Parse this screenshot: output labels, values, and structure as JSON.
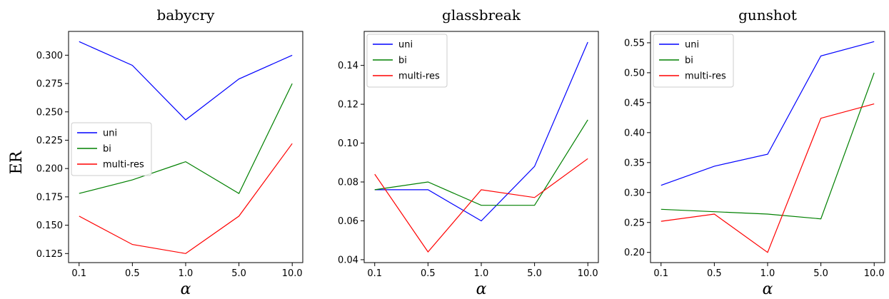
{
  "figure": {
    "ylabel": "ER"
  },
  "chart_data": [
    {
      "type": "line",
      "title": "babycry",
      "xlabel": "α",
      "ylabel": "ER",
      "categories": [
        "0.1",
        "0.5",
        "1.0",
        "5.0",
        "10.0"
      ],
      "ylim": [
        0.117,
        0.321
      ],
      "yticks": [
        "0.125",
        "0.150",
        "0.175",
        "0.200",
        "0.225",
        "0.250",
        "0.275",
        "0.300"
      ],
      "legend_position": "center-left",
      "series": [
        {
          "name": "uni",
          "color": "#0000ff",
          "values": [
            0.312,
            0.291,
            0.243,
            0.279,
            0.3
          ]
        },
        {
          "name": "bi",
          "color": "#008000",
          "values": [
            0.178,
            0.19,
            0.206,
            0.178,
            0.275
          ]
        },
        {
          "name": "multi-res",
          "color": "#ff0000",
          "values": [
            0.158,
            0.133,
            0.125,
            0.158,
            0.222
          ]
        }
      ]
    },
    {
      "type": "line",
      "title": "glassbreak",
      "xlabel": "α",
      "ylabel": "",
      "categories": [
        "0.1",
        "0.5",
        "1.0",
        "5.0",
        "10.0"
      ],
      "ylim": [
        0.0385,
        0.1575
      ],
      "yticks": [
        "0.04",
        "0.06",
        "0.08",
        "0.10",
        "0.12",
        "0.14"
      ],
      "legend_position": "top-left",
      "series": [
        {
          "name": "uni",
          "color": "#0000ff",
          "values": [
            0.076,
            0.076,
            0.06,
            0.088,
            0.152
          ]
        },
        {
          "name": "bi",
          "color": "#008000",
          "values": [
            0.076,
            0.08,
            0.068,
            0.068,
            0.112
          ]
        },
        {
          "name": "multi-res",
          "color": "#ff0000",
          "values": [
            0.084,
            0.044,
            0.076,
            0.072,
            0.092
          ]
        }
      ]
    },
    {
      "type": "line",
      "title": "gunshot",
      "xlabel": "α",
      "ylabel": "",
      "categories": [
        "0.1",
        "0.5",
        "1.0",
        "5.0",
        "10.0"
      ],
      "ylim": [
        0.183,
        0.569
      ],
      "yticks": [
        "0.20",
        "0.25",
        "0.30",
        "0.35",
        "0.40",
        "0.45",
        "0.50",
        "0.55"
      ],
      "legend_position": "top-left",
      "series": [
        {
          "name": "uni",
          "color": "#0000ff",
          "values": [
            0.312,
            0.344,
            0.364,
            0.528,
            0.552
          ]
        },
        {
          "name": "bi",
          "color": "#008000",
          "values": [
            0.272,
            0.268,
            0.264,
            0.256,
            0.5
          ]
        },
        {
          "name": "multi-res",
          "color": "#ff0000",
          "values": [
            0.252,
            0.264,
            0.2,
            0.424,
            0.448
          ]
        }
      ]
    }
  ]
}
